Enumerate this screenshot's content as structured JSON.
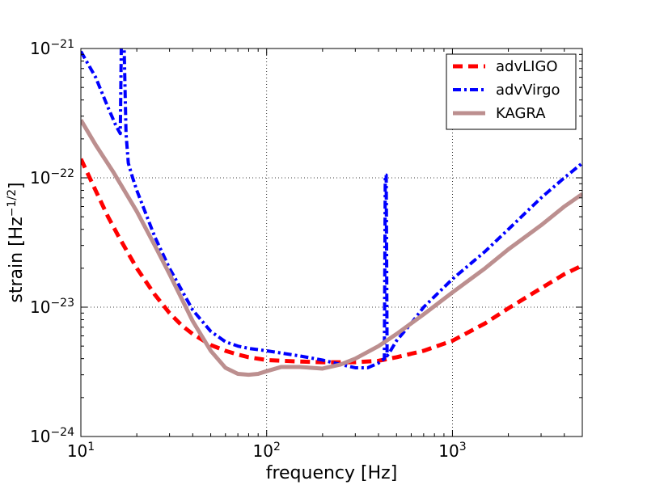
{
  "chart_data": {
    "type": "line",
    "title": "",
    "xlabel": "frequency [Hz]",
    "ylabel_base": "strain [Hz",
    "ylabel_exp": "−1/2",
    "ylabel_close": "]",
    "xscale": "log",
    "yscale": "log",
    "xlim": [
      10,
      5000
    ],
    "ylim": [
      1e-24,
      1e-21
    ],
    "grid": true,
    "legend_position": "top-right",
    "x_ticks": [
      {
        "value": 10,
        "base": "10",
        "exp": "1"
      },
      {
        "value": 100,
        "base": "10",
        "exp": "2"
      },
      {
        "value": 1000,
        "base": "10",
        "exp": "3"
      }
    ],
    "y_ticks": [
      {
        "value": 1e-24,
        "base": "10",
        "exp": "−24"
      },
      {
        "value": 1e-23,
        "base": "10",
        "exp": "−23"
      },
      {
        "value": 1e-22,
        "base": "10",
        "exp": "−22"
      },
      {
        "value": 1e-21,
        "base": "10",
        "exp": "−21"
      }
    ],
    "series": [
      {
        "name": "advLIGO",
        "color": "#ff0000",
        "style": "dashed",
        "x": [
          10,
          12,
          14,
          16,
          18,
          20,
          25,
          30,
          35,
          40,
          50,
          60,
          70,
          80,
          100,
          150,
          200,
          300,
          400,
          500,
          700,
          1000,
          1500,
          2000,
          3000,
          4000,
          5000
        ],
        "y": [
          1.4e-22,
          8e-23,
          5e-23,
          3.5e-23,
          2.6e-23,
          2e-23,
          1.25e-23,
          9e-24,
          7.2e-24,
          6.2e-24,
          5.1e-24,
          4.6e-24,
          4.3e-24,
          4.1e-24,
          3.9e-24,
          3.8e-24,
          3.75e-24,
          3.75e-24,
          3.85e-24,
          4.1e-24,
          4.6e-24,
          5.5e-24,
          7.5e-24,
          9.8e-24,
          1.4e-23,
          1.8e-23,
          2.1e-23
        ]
      },
      {
        "name": "advVirgo",
        "color": "#0000ff",
        "style": "dashdot",
        "x": [
          10,
          12,
          14,
          15.5,
          16.3,
          16.5,
          16.7,
          16.9,
          17.1,
          17.5,
          18,
          19,
          20,
          25,
          30,
          40,
          50,
          60,
          70,
          80,
          100,
          150,
          200,
          250,
          300,
          350,
          400,
          430,
          435,
          440,
          445,
          450,
          460,
          500,
          600,
          700,
          1000,
          1500,
          2000,
          3000,
          4000,
          5000
        ],
        "y": [
          9.5e-22,
          6e-22,
          3.5e-22,
          2.5e-22,
          2.2e-22,
          1e-21,
          1e-21,
          1e-21,
          1e-21,
          2.2e-22,
          1.3e-22,
          1e-22,
          8e-23,
          3.5e-23,
          2e-23,
          9.5e-24,
          6.5e-24,
          5.4e-24,
          5e-24,
          4.8e-24,
          4.6e-24,
          4.2e-24,
          3.9e-24,
          3.6e-24,
          3.4e-24,
          3.4e-24,
          3.7e-24,
          4e-24,
          1.05e-22,
          1.05e-22,
          4.2e-24,
          4.3e-24,
          4.5e-24,
          5.5e-24,
          7.5e-24,
          1e-23,
          1.65e-23,
          2.7e-23,
          4e-23,
          7e-23,
          1e-22,
          1.3e-22
        ]
      },
      {
        "name": "KAGRA",
        "color": "#bc8f8f",
        "style": "solid",
        "x": [
          10,
          12,
          15,
          20,
          25,
          30,
          35,
          40,
          50,
          60,
          70,
          80,
          90,
          100,
          120,
          150,
          200,
          250,
          300,
          400,
          500,
          700,
          1000,
          1500,
          2000,
          3000,
          4000,
          5000
        ],
        "y": [
          2.8e-22,
          1.8e-22,
          1.1e-22,
          5.5e-23,
          3e-23,
          1.8e-23,
          1.15e-23,
          7.8e-24,
          4.6e-24,
          3.4e-24,
          3.05e-24,
          3e-24,
          3.05e-24,
          3.2e-24,
          3.45e-24,
          3.45e-24,
          3.35e-24,
          3.6e-24,
          4e-24,
          5e-24,
          6.2e-24,
          8.8e-24,
          1.3e-23,
          2e-23,
          2.8e-23,
          4.3e-23,
          6e-23,
          7.5e-23
        ]
      }
    ]
  }
}
